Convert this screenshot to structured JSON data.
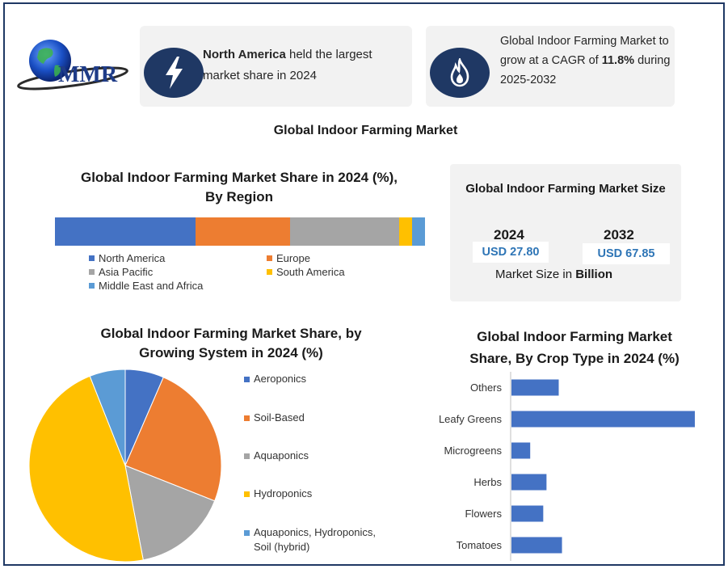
{
  "brand": {
    "name": "MMR"
  },
  "cards": {
    "north_america": {
      "bold": "North America",
      "text": " held the largest market share in 2024"
    },
    "cagr": {
      "text_before": "Global Indoor Farming Market to grow at a CAGR of ",
      "bold": "11.8%",
      "text_after": " during 2025-2032"
    }
  },
  "icons": {
    "card1": "lightning-icon",
    "card2": "flame-icon"
  },
  "main_title": "Global Indoor Farming Market",
  "market_size": {
    "title": "Global Indoor Farming Market Size",
    "year1": "2024",
    "value1": "USD 27.80",
    "year2": "2032",
    "value2": "USD 67.85",
    "note_prefix": "Market Size in ",
    "note_bold": "Billion"
  },
  "colors": {
    "navy": "#1f3864",
    "blue": "#4472c4",
    "orange": "#ed7d31",
    "gray": "#a5a5a5",
    "yellow": "#ffc000",
    "lightblue": "#5b9bd5"
  },
  "chart_data": [
    {
      "type": "bar",
      "orientation": "horizontal-stacked",
      "title": "Global Indoor Farming Market Share in 2024 (%), By Region",
      "series": [
        {
          "name": "North America",
          "values": [
            38
          ],
          "color": "#4472c4"
        },
        {
          "name": "Europe",
          "values": [
            25.5
          ],
          "color": "#ed7d31"
        },
        {
          "name": "Asia Pacific",
          "values": [
            29.5
          ],
          "color": "#a5a5a5"
        },
        {
          "name": "South America",
          "values": [
            3.5
          ],
          "color": "#ffc000"
        },
        {
          "name": "Middle East and Africa",
          "values": [
            3.5
          ],
          "color": "#5b9bd5"
        }
      ],
      "legend": "bottom"
    },
    {
      "type": "pie",
      "title": "Global Indoor Farming Market Share, by Growing System in 2024 (%)",
      "slices": [
        {
          "label": "Aeroponics",
          "value": 6.5,
          "color": "#4472c4"
        },
        {
          "label": "Soil-Based",
          "value": 24.5,
          "color": "#ed7d31"
        },
        {
          "label": "Aquaponics",
          "value": 16,
          "color": "#a5a5a5"
        },
        {
          "label": "Hydroponics",
          "value": 47,
          "color": "#ffc000"
        },
        {
          "label": "Aquaponics, Hydroponics, Soil (hybrid)",
          "value": 6,
          "color": "#5b9bd5"
        }
      ],
      "legend": "right"
    },
    {
      "type": "bar",
      "orientation": "horizontal",
      "title": "Global Indoor Farming Market Share, By Crop Type in 2024 (%)",
      "categories": [
        "Others",
        "Leafy Greens",
        "Microgreens",
        "Herbs",
        "Flowers",
        "Tomatoes"
      ],
      "values": [
        5.8,
        22.5,
        2.3,
        4.3,
        3.9,
        6.2
      ],
      "color": "#4472c4",
      "xlim": [
        0,
        23
      ],
      "grid": false
    }
  ]
}
